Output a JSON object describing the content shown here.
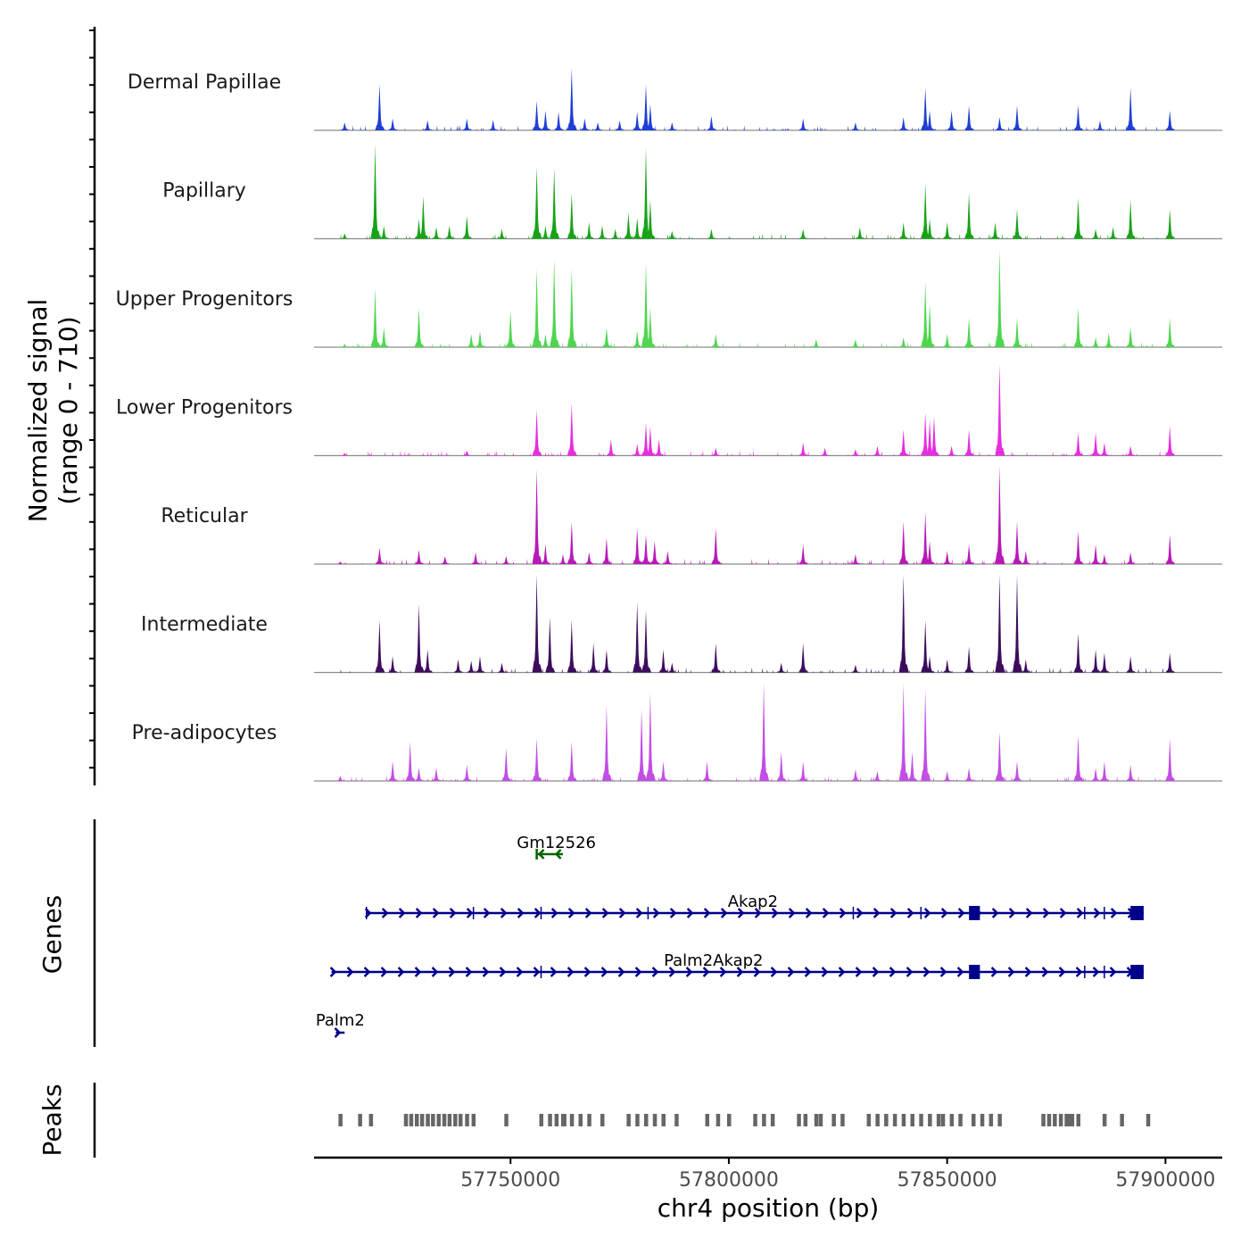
{
  "chart_data": {
    "type": "area",
    "chromosome": "chr4",
    "x_range": [
      57705000,
      57913000
    ],
    "y_range": [
      0,
      710
    ],
    "y_axis_title": [
      "Normalized signal",
      "(range 0 - 710)"
    ],
    "x_axis_title": "chr4 position (bp)",
    "x_ticks": [
      57750000,
      57800000,
      57850000,
      57900000
    ],
    "x_tick_labels": [
      "57750000",
      "57800000",
      "57850000",
      "57900000"
    ],
    "genes_label": "Genes",
    "peaks_label": "Peaks",
    "peak_positions": [
      57762,
      57711,
      57715.5,
      57718,
      57726,
      57727.2,
      57728.5,
      57729.7,
      57731,
      57732.2,
      57733.5,
      57734.8,
      57736,
      57737.3,
      57738.5,
      57740,
      57741.5,
      57749,
      57757,
      57759,
      57760.5,
      57762.3,
      57764,
      57766,
      57768,
      57771,
      57777,
      57779,
      57781,
      57783,
      57785,
      57788,
      57795,
      57797.5,
      57800,
      57806,
      57808,
      57810,
      57816,
      57821,
      57824,
      57826,
      57832,
      57834,
      57836,
      57838,
      57840,
      57842,
      57844,
      57846,
      57849,
      57853,
      57856,
      57860,
      57862,
      57872,
      57873.3,
      57874.6,
      57876,
      57877.3,
      57878.6,
      57880,
      57886,
      57890,
      57896,
      57851,
      57848,
      57820,
      57817.5,
      57858,
      57878
    ],
    "tracks": [
      {
        "name": "Dermal Papillae",
        "color": "#1f3fd6",
        "peaks": [
          [
            57712,
            12
          ],
          [
            57720,
            70
          ],
          [
            57723,
            18
          ],
          [
            57731,
            15
          ],
          [
            57740,
            18
          ],
          [
            57746,
            16
          ],
          [
            57756,
            45
          ],
          [
            57758,
            30
          ],
          [
            57761,
            28
          ],
          [
            57764,
            95
          ],
          [
            57767,
            18
          ],
          [
            57770,
            12
          ],
          [
            57775,
            15
          ],
          [
            57779,
            28
          ],
          [
            57781,
            70
          ],
          [
            57782,
            40
          ],
          [
            57787,
            12
          ],
          [
            57796,
            22
          ],
          [
            57817,
            18
          ],
          [
            57829,
            12
          ],
          [
            57840,
            20
          ],
          [
            57845,
            65
          ],
          [
            57846,
            30
          ],
          [
            57851,
            30
          ],
          [
            57855,
            38
          ],
          [
            57862,
            20
          ],
          [
            57866,
            38
          ],
          [
            57880,
            38
          ],
          [
            57885,
            15
          ],
          [
            57892,
            65
          ],
          [
            57901,
            30
          ]
        ]
      },
      {
        "name": "Papillary",
        "color": "#17a317",
        "peaks": [
          [
            57712,
            8
          ],
          [
            57719,
            145
          ],
          [
            57721,
            20
          ],
          [
            57729,
            30
          ],
          [
            57730,
            65
          ],
          [
            57733,
            18
          ],
          [
            57736,
            20
          ],
          [
            57740,
            35
          ],
          [
            57748,
            15
          ],
          [
            57756,
            110
          ],
          [
            57758,
            20
          ],
          [
            57760,
            108
          ],
          [
            57764,
            70
          ],
          [
            57768,
            25
          ],
          [
            57771,
            20
          ],
          [
            57774,
            15
          ],
          [
            57777,
            40
          ],
          [
            57779,
            32
          ],
          [
            57781,
            140
          ],
          [
            57782,
            60
          ],
          [
            57787,
            12
          ],
          [
            57796,
            15
          ],
          [
            57817,
            15
          ],
          [
            57830,
            18
          ],
          [
            57840,
            25
          ],
          [
            57845,
            85
          ],
          [
            57846,
            30
          ],
          [
            57850,
            25
          ],
          [
            57855,
            70
          ],
          [
            57861,
            25
          ],
          [
            57866,
            45
          ],
          [
            57880,
            62
          ],
          [
            57884,
            15
          ],
          [
            57888,
            18
          ],
          [
            57892,
            60
          ],
          [
            57901,
            45
          ]
        ]
      },
      {
        "name": "Upper Progenitors",
        "color": "#4ed64e",
        "peaks": [
          [
            57712,
            5
          ],
          [
            57719,
            90
          ],
          [
            57721,
            30
          ],
          [
            57729,
            60
          ],
          [
            57741,
            20
          ],
          [
            57743,
            25
          ],
          [
            57750,
            55
          ],
          [
            57756,
            120
          ],
          [
            57758,
            20
          ],
          [
            57760,
            135
          ],
          [
            57764,
            120
          ],
          [
            57772,
            30
          ],
          [
            57779,
            25
          ],
          [
            57781,
            130
          ],
          [
            57782,
            60
          ],
          [
            57797,
            20
          ],
          [
            57820,
            12
          ],
          [
            57829,
            12
          ],
          [
            57840,
            15
          ],
          [
            57845,
            100
          ],
          [
            57846,
            65
          ],
          [
            57850,
            20
          ],
          [
            57855,
            45
          ],
          [
            57862,
            155
          ],
          [
            57866,
            45
          ],
          [
            57880,
            60
          ],
          [
            57884,
            15
          ],
          [
            57887,
            22
          ],
          [
            57892,
            30
          ],
          [
            57901,
            45
          ]
        ]
      },
      {
        "name": "Lower Progenitors",
        "color": "#e62de0",
        "peaks": [
          [
            57712,
            4
          ],
          [
            57740,
            8
          ],
          [
            57756,
            70
          ],
          [
            57764,
            80
          ],
          [
            57773,
            25
          ],
          [
            57779,
            18
          ],
          [
            57781,
            50
          ],
          [
            57782,
            45
          ],
          [
            57784,
            25
          ],
          [
            57797,
            12
          ],
          [
            57817,
            20
          ],
          [
            57822,
            12
          ],
          [
            57829,
            10
          ],
          [
            57834,
            15
          ],
          [
            57840,
            40
          ],
          [
            57845,
            65
          ],
          [
            57846,
            55
          ],
          [
            57847,
            60
          ],
          [
            57851,
            15
          ],
          [
            57855,
            40
          ],
          [
            57862,
            140
          ],
          [
            57880,
            35
          ],
          [
            57884,
            35
          ],
          [
            57886,
            20
          ],
          [
            57892,
            15
          ],
          [
            57901,
            45
          ]
        ]
      },
      {
        "name": "Reticular",
        "color": "#b81ab8",
        "peaks": [
          [
            57711,
            4
          ],
          [
            57720,
            25
          ],
          [
            57729,
            22
          ],
          [
            57735,
            12
          ],
          [
            57742,
            18
          ],
          [
            57749,
            12
          ],
          [
            57756,
            145
          ],
          [
            57758,
            30
          ],
          [
            57762,
            15
          ],
          [
            57764,
            65
          ],
          [
            57768,
            18
          ],
          [
            57772,
            40
          ],
          [
            57779,
            55
          ],
          [
            57781,
            45
          ],
          [
            57783,
            35
          ],
          [
            57786,
            20
          ],
          [
            57797,
            55
          ],
          [
            57817,
            30
          ],
          [
            57829,
            15
          ],
          [
            57840,
            65
          ],
          [
            57845,
            80
          ],
          [
            57846,
            35
          ],
          [
            57850,
            20
          ],
          [
            57855,
            30
          ],
          [
            57862,
            165
          ],
          [
            57866,
            65
          ],
          [
            57868,
            20
          ],
          [
            57880,
            50
          ],
          [
            57884,
            30
          ],
          [
            57886,
            15
          ],
          [
            57892,
            18
          ],
          [
            57901,
            45
          ]
        ]
      },
      {
        "name": "Intermediate",
        "color": "#3d0d5c",
        "peaks": [
          [
            57720,
            80
          ],
          [
            57723,
            25
          ],
          [
            57729,
            105
          ],
          [
            57731,
            35
          ],
          [
            57738,
            20
          ],
          [
            57741,
            18
          ],
          [
            57743,
            25
          ],
          [
            57748,
            15
          ],
          [
            57756,
            150
          ],
          [
            57759,
            85
          ],
          [
            57764,
            80
          ],
          [
            57769,
            45
          ],
          [
            57772,
            35
          ],
          [
            57779,
            108
          ],
          [
            57781,
            95
          ],
          [
            57785,
            35
          ],
          [
            57787,
            15
          ],
          [
            57797,
            45
          ],
          [
            57812,
            15
          ],
          [
            57817,
            45
          ],
          [
            57829,
            12
          ],
          [
            57840,
            155
          ],
          [
            57845,
            80
          ],
          [
            57846,
            25
          ],
          [
            57850,
            20
          ],
          [
            57855,
            40
          ],
          [
            57862,
            155
          ],
          [
            57866,
            150
          ],
          [
            57868,
            20
          ],
          [
            57880,
            60
          ],
          [
            57884,
            35
          ],
          [
            57886,
            30
          ],
          [
            57892,
            25
          ],
          [
            57901,
            30
          ]
        ]
      },
      {
        "name": "Pre-adipocytes",
        "color": "#c24ee6",
        "peaks": [
          [
            57711,
            8
          ],
          [
            57723,
            30
          ],
          [
            57727,
            60
          ],
          [
            57729,
            20
          ],
          [
            57733,
            20
          ],
          [
            57740,
            25
          ],
          [
            57749,
            50
          ],
          [
            57756,
            65
          ],
          [
            57764,
            60
          ],
          [
            57772,
            115
          ],
          [
            57780,
            110
          ],
          [
            57782,
            135
          ],
          [
            57785,
            30
          ],
          [
            57795,
            30
          ],
          [
            57808,
            150
          ],
          [
            57812,
            45
          ],
          [
            57817,
            30
          ],
          [
            57829,
            18
          ],
          [
            57834,
            15
          ],
          [
            57840,
            165
          ],
          [
            57842,
            45
          ],
          [
            57845,
            140
          ],
          [
            57850,
            15
          ],
          [
            57855,
            20
          ],
          [
            57862,
            75
          ],
          [
            57866,
            30
          ],
          [
            57880,
            70
          ],
          [
            57884,
            20
          ],
          [
            57886,
            30
          ],
          [
            57892,
            25
          ],
          [
            57901,
            65
          ]
        ]
      }
    ],
    "genes": [
      {
        "name": "Gm12526",
        "start": 57756,
        "end": 57762,
        "strand": "-",
        "color": "#006400",
        "label_x": 57760.5,
        "row": 0,
        "exons": []
      },
      {
        "name": "Akap2",
        "start": 57717,
        "end": 57895,
        "strand": "+",
        "color": "#00008b",
        "label_x": 57805.5,
        "row": 1,
        "exons": [
          [
            57855,
            57857.5
          ],
          [
            57892,
            57895
          ]
        ],
        "introns_marks": [
          57717,
          57741.5,
          57757,
          57781.5,
          57828.5,
          57844,
          57881.5,
          57886
        ]
      },
      {
        "name": "Palm2Akap2",
        "start": 57709,
        "end": 57895,
        "strand": "+",
        "color": "#00008b",
        "label_x": 57796.5,
        "row": 2,
        "exons": [
          [
            57855,
            57857.5
          ],
          [
            57892,
            57895
          ]
        ],
        "introns_marks": [
          57757,
          57881.5,
          57886
        ]
      },
      {
        "name": "Palm2",
        "start": 57710,
        "end": 57712,
        "strand": "+",
        "color": "#00008b",
        "label_x": 57711,
        "row": 3,
        "exons": []
      }
    ]
  }
}
